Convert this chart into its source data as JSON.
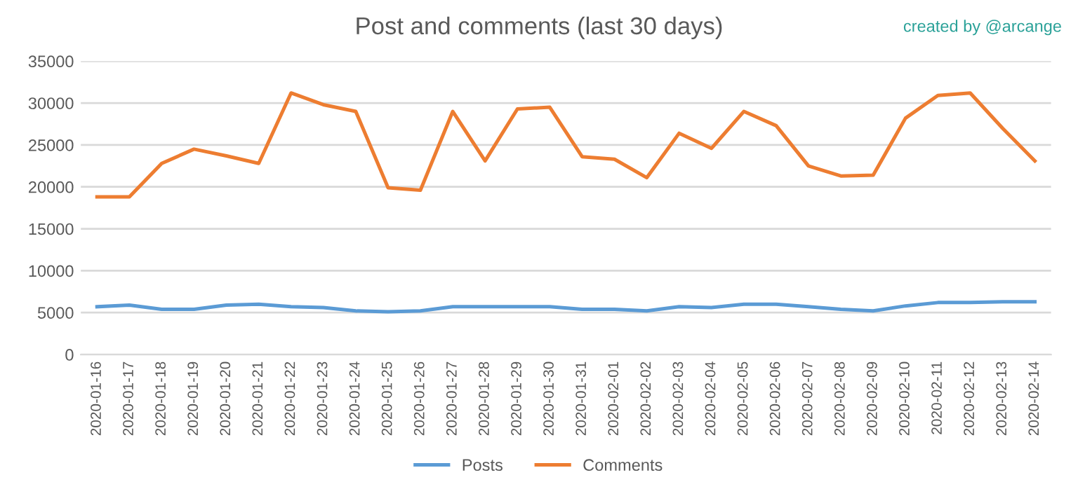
{
  "chart_data": {
    "type": "line",
    "title": "Post and comments (last 30 days)",
    "annotations": [
      "created by @arcange"
    ],
    "categories": [
      "2020-01-16",
      "2020-01-17",
      "2020-01-18",
      "2020-01-19",
      "2020-01-20",
      "2020-01-21",
      "2020-01-22",
      "2020-01-23",
      "2020-01-24",
      "2020-01-25",
      "2020-01-26",
      "2020-01-27",
      "2020-01-28",
      "2020-01-29",
      "2020-01-30",
      "2020-01-31",
      "2020-02-01",
      "2020-02-02",
      "2020-02-03",
      "2020-02-04",
      "2020-02-05",
      "2020-02-06",
      "2020-02-07",
      "2020-02-08",
      "2020-02-09",
      "2020-02-10",
      "2020-02-11",
      "2020-02-12",
      "2020-02-13",
      "2020-02-14"
    ],
    "series": [
      {
        "name": "Posts",
        "color": "#5b9bd5",
        "values": [
          5700,
          5900,
          5400,
          5400,
          5900,
          6000,
          5700,
          5600,
          5200,
          5100,
          5200,
          5700,
          5700,
          5700,
          5700,
          5400,
          5400,
          5200,
          5700,
          5600,
          6000,
          6000,
          5700,
          5400,
          5200,
          5800,
          6200,
          6200,
          6300,
          6300
        ]
      },
      {
        "name": "Comments",
        "color": "#ed7d31",
        "values": [
          18800,
          18800,
          22800,
          24500,
          23700,
          22800,
          31200,
          29800,
          29000,
          19900,
          19600,
          29000,
          23100,
          29300,
          29500,
          23600,
          23300,
          21100,
          26400,
          24600,
          29000,
          27300,
          22500,
          21300,
          21400,
          28200,
          30900,
          31200,
          27000,
          23100
        ]
      }
    ],
    "ylim": [
      0,
      35000
    ],
    "yticks": [
      0,
      5000,
      10000,
      15000,
      20000,
      25000,
      30000,
      35000
    ],
    "grid": "y",
    "legend": "bottom",
    "marker": "none",
    "line_style": "solid"
  }
}
